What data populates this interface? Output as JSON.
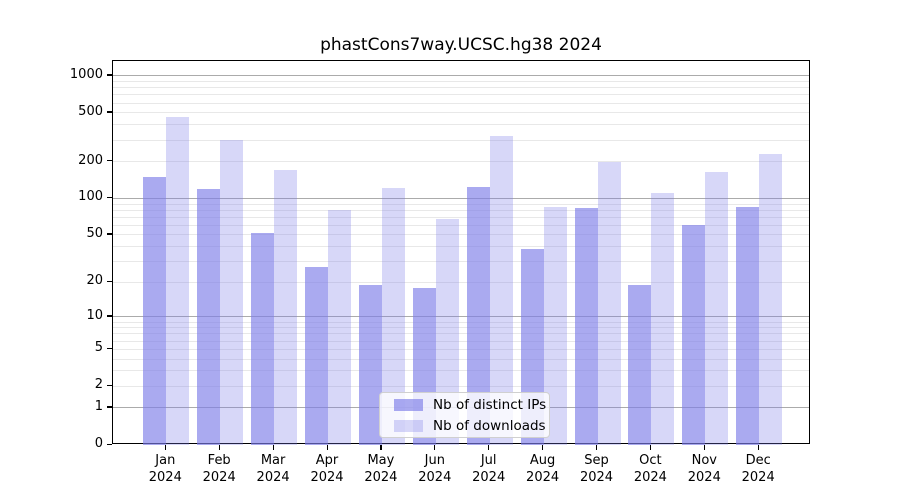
{
  "title": "phastCons7way.UCSC.hg38 2024",
  "legend": {
    "items": [
      {
        "label": "Nb of distinct IPs"
      },
      {
        "label": "Nb of downloads"
      }
    ]
  },
  "colors": {
    "bar_base": "#7c7ce8",
    "series_alpha": [
      0.65,
      0.3
    ],
    "major_grid": "#ababab",
    "minor_grid": "#e8e8e8",
    "axis": "#000000"
  },
  "chart_data": {
    "type": "bar",
    "title": "phastCons7way.UCSC.hg38 2024",
    "categories": [
      "Jan 2024",
      "Feb 2024",
      "Mar 2024",
      "Apr 2024",
      "May 2024",
      "Jun 2024",
      "Jul 2024",
      "Aug 2024",
      "Sep 2024",
      "Oct 2024",
      "Nov 2024",
      "Dec 2024"
    ],
    "x_tick_line1": [
      "Jan",
      "Feb",
      "Mar",
      "Apr",
      "May",
      "Jun",
      "Jul",
      "Aug",
      "Sep",
      "Oct",
      "Nov",
      "Dec"
    ],
    "x_tick_line2": "2024",
    "series": [
      {
        "name": "Nb of distinct IPs",
        "values": [
          150,
          120,
          52,
          27,
          19,
          18,
          125,
          38,
          84,
          19,
          60,
          85
        ]
      },
      {
        "name": "Nb of downloads",
        "values": [
          460,
          300,
          170,
          80,
          122,
          68,
          325,
          85,
          200,
          110,
          165,
          232
        ]
      }
    ],
    "xlabel": "",
    "ylabel": "",
    "yscale": "log10(1+v)",
    "yticks": [
      0,
      1,
      2,
      5,
      10,
      20,
      50,
      100,
      200,
      500,
      1000
    ],
    "ylim": [
      0,
      1325
    ],
    "grid": true,
    "legend_position": "lower center"
  }
}
